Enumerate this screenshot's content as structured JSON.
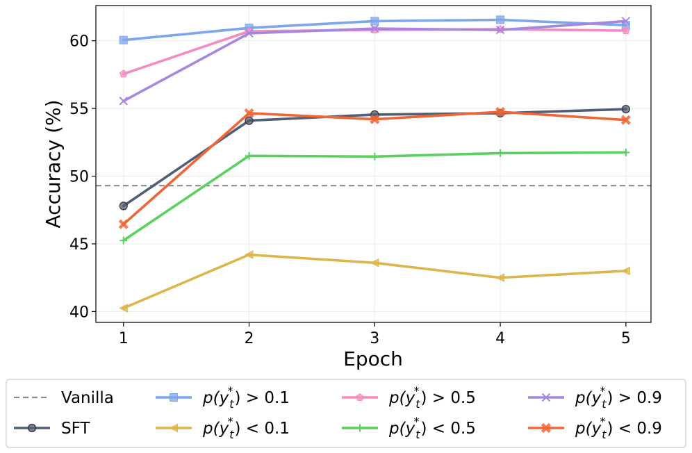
{
  "chart_data": {
    "type": "line",
    "title": "",
    "xlabel": "Epoch",
    "ylabel": "Accuracy (%)",
    "x": [
      1,
      2,
      3,
      4,
      5
    ],
    "xticks": [
      "1",
      "2",
      "3",
      "4",
      "5"
    ],
    "yticks": [
      "40",
      "45",
      "50",
      "55",
      "60"
    ],
    "xlim": [
      0.78,
      5.2
    ],
    "ylim": [
      39.2,
      62.6
    ],
    "grid": true,
    "legend_position": "bottom",
    "vanilla": {
      "name": "Vanilla",
      "value": 49.3,
      "color": "#8c8c8c"
    },
    "series": [
      {
        "key": "sft",
        "name": "SFT",
        "color": "#525e75",
        "marker": "circle",
        "values": [
          47.8,
          54.1,
          54.55,
          54.65,
          54.95
        ]
      },
      {
        "key": "gt01",
        "name": "p(y_t^*) > 0.1",
        "color": "#7ea6ec",
        "marker": "square",
        "values": [
          60.05,
          60.95,
          61.45,
          61.55,
          61.15
        ]
      },
      {
        "key": "lt01",
        "name": "p(y_t^*) < 0.1",
        "color": "#dcb64a",
        "marker": "triangle",
        "values": [
          40.25,
          44.2,
          43.6,
          42.5,
          43.0
        ]
      },
      {
        "key": "gt05",
        "name": "p(y_t^*) > 0.5",
        "color": "#f58cc0",
        "marker": "pentagon",
        "values": [
          57.55,
          60.7,
          60.8,
          60.85,
          60.75
        ]
      },
      {
        "key": "lt05",
        "name": "p(y_t^*) < 0.5",
        "color": "#5ad15e",
        "marker": "plus",
        "values": [
          45.25,
          51.5,
          51.45,
          51.7,
          51.75
        ]
      },
      {
        "key": "gt09",
        "name": "p(y_t^*) > 0.9",
        "color": "#a687df",
        "marker": "x",
        "values": [
          55.55,
          60.55,
          60.9,
          60.8,
          61.45
        ]
      },
      {
        "key": "lt09",
        "name": "p(y_t^*) < 0.9",
        "color": "#f06535",
        "marker": "xfilled",
        "values": [
          46.45,
          54.65,
          54.2,
          54.75,
          54.15
        ]
      }
    ]
  },
  "legend": {
    "items": [
      {
        "key": "vanilla",
        "prefix": "Vanilla",
        "math": false
      },
      {
        "key": "gt01",
        "prefix": "p(y",
        "sub": "t",
        "sup": "*",
        "suffix": ") > 0.1",
        "math": true
      },
      {
        "key": "gt05",
        "prefix": "p(y",
        "sub": "t",
        "sup": "*",
        "suffix": ") > 0.5",
        "math": true
      },
      {
        "key": "gt09",
        "prefix": "p(y",
        "sub": "t",
        "sup": "*",
        "suffix": ") > 0.9",
        "math": true
      },
      {
        "key": "sft",
        "prefix": "SFT",
        "math": false
      },
      {
        "key": "lt01",
        "prefix": "p(y",
        "sub": "t",
        "sup": "*",
        "suffix": ") < 0.1",
        "math": true
      },
      {
        "key": "lt05",
        "prefix": "p(y",
        "sub": "t",
        "sup": "*",
        "suffix": ") < 0.5",
        "math": true
      },
      {
        "key": "lt09",
        "prefix": "p(y",
        "sub": "t",
        "sup": "*",
        "suffix": ") < 0.9",
        "math": true
      }
    ]
  }
}
